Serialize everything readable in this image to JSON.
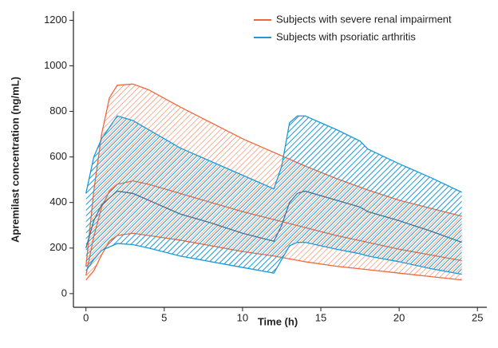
{
  "chart_data": {
    "type": "band",
    "x_label": "Time (h)",
    "y_label": "Apremilast concentration (ng/mL)",
    "xlim": [
      -0.8,
      25.6
    ],
    "xticks": [
      0,
      5,
      10,
      15,
      20,
      25
    ],
    "ylim": [
      -60,
      1240
    ],
    "yticks": [
      0,
      200,
      400,
      600,
      800,
      1000,
      1200
    ],
    "legend": "upper-right",
    "series": [
      {
        "name": "Subjects with severe renal impairment",
        "color": "#f0683a",
        "x": [
          0,
          0.5,
          1,
          1.5,
          2,
          3,
          4,
          6,
          8,
          10,
          12,
          14,
          16,
          18,
          20,
          22,
          24
        ],
        "upper": [
          120,
          450,
          700,
          860,
          915,
          920,
          895,
          820,
          750,
          680,
          620,
          560,
          505,
          455,
          410,
          375,
          340
        ],
        "middle": [
          80,
          250,
          380,
          450,
          480,
          495,
          480,
          440,
          400,
          360,
          325,
          290,
          255,
          225,
          195,
          170,
          145
        ],
        "lower": [
          60,
          100,
          170,
          230,
          255,
          265,
          255,
          235,
          210,
          185,
          165,
          140,
          120,
          105,
          90,
          75,
          60
        ]
      },
      {
        "name": "Subjects with psoriatic arthritis",
        "color": "#1e9ad6",
        "x": [
          0,
          0.5,
          1,
          2,
          3,
          4,
          6,
          8,
          10,
          12,
          12.5,
          13,
          13.5,
          14,
          16,
          17.5,
          18,
          20,
          22,
          24
        ],
        "upper": [
          440,
          600,
          680,
          780,
          760,
          720,
          640,
          580,
          520,
          460,
          560,
          750,
          780,
          780,
          720,
          670,
          635,
          570,
          510,
          445
        ],
        "middle": [
          200,
          320,
          390,
          450,
          440,
          410,
          350,
          310,
          265,
          230,
          300,
          400,
          440,
          450,
          410,
          380,
          360,
          320,
          275,
          225
        ],
        "lower": [
          100,
          150,
          190,
          220,
          215,
          200,
          165,
          140,
          115,
          90,
          150,
          210,
          225,
          225,
          195,
          175,
          165,
          140,
          110,
          85
        ]
      }
    ]
  }
}
